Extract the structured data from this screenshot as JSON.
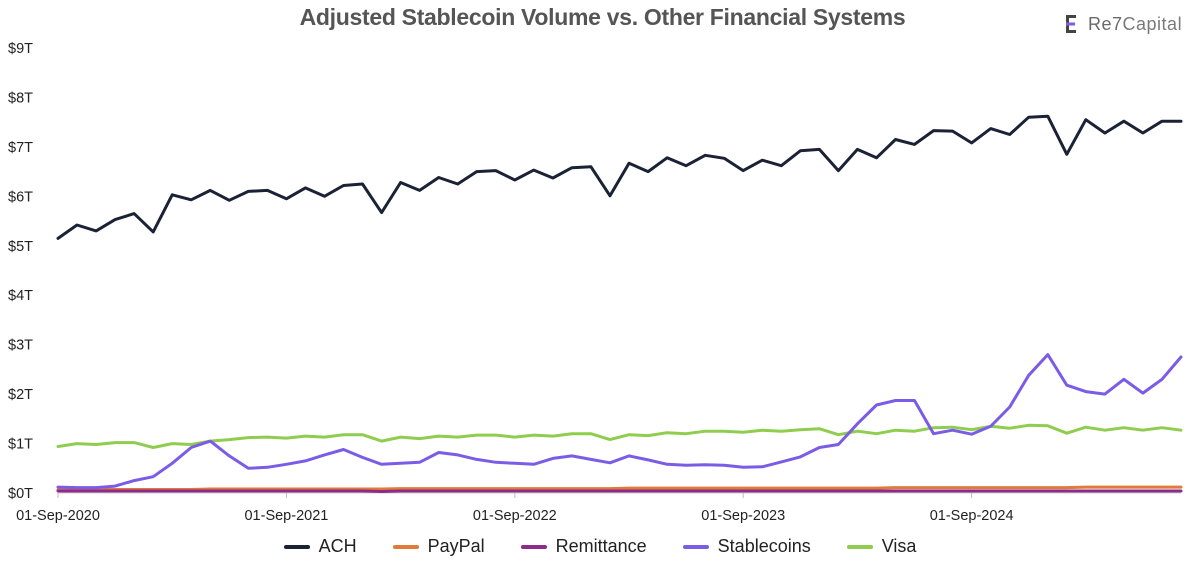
{
  "chart_data": {
    "type": "line",
    "title": "Adjusted Stablecoin Volume vs. Other Financial Systems",
    "brand": "Re7Capital",
    "brand_parts": [
      "Re7",
      "Capital"
    ],
    "xlabel": "",
    "ylabel": "",
    "ylim": [
      0,
      9
    ],
    "y_unit": "trillion USD",
    "y_ticks": [
      "$0T",
      "$1T",
      "$2T",
      "$3T",
      "$4T",
      "$5T",
      "$6T",
      "$7T",
      "$8T",
      "$9T"
    ],
    "x_ticks": [
      "01-Sep-2020",
      "01-Sep-2021",
      "01-Sep-2022",
      "01-Sep-2023",
      "01-Sep-2024"
    ],
    "x_start": "2020-09",
    "x_end": "2025-09",
    "x_frequency": "monthly",
    "grid": false,
    "legend_position": "bottom",
    "series": [
      {
        "name": "ACH",
        "color": "#1b2236",
        "values": [
          5.15,
          5.42,
          5.3,
          5.53,
          5.65,
          5.28,
          6.03,
          5.93,
          6.12,
          5.92,
          6.1,
          6.12,
          5.95,
          6.17,
          6.0,
          6.22,
          6.25,
          5.67,
          6.28,
          6.12,
          6.38,
          6.25,
          6.5,
          6.52,
          6.33,
          6.53,
          6.37,
          6.58,
          6.6,
          6.01,
          6.67,
          6.5,
          6.78,
          6.62,
          6.83,
          6.77,
          6.52,
          6.73,
          6.62,
          6.92,
          6.95,
          6.52,
          6.95,
          6.78,
          7.15,
          7.05,
          7.33,
          7.32,
          7.08,
          7.37,
          7.25,
          7.6,
          7.62,
          6.85,
          7.55,
          7.28,
          7.52,
          7.28,
          7.52,
          7.52
        ]
      },
      {
        "name": "PayPal",
        "color": "#e07b39",
        "values": [
          0.06,
          0.07,
          0.07,
          0.07,
          0.07,
          0.07,
          0.07,
          0.07,
          0.08,
          0.08,
          0.08,
          0.08,
          0.08,
          0.08,
          0.08,
          0.08,
          0.08,
          0.08,
          0.09,
          0.09,
          0.09,
          0.09,
          0.09,
          0.09,
          0.09,
          0.09,
          0.09,
          0.09,
          0.09,
          0.09,
          0.1,
          0.1,
          0.1,
          0.1,
          0.1,
          0.1,
          0.1,
          0.1,
          0.1,
          0.1,
          0.1,
          0.1,
          0.1,
          0.1,
          0.11,
          0.11,
          0.11,
          0.11,
          0.11,
          0.11,
          0.11,
          0.11,
          0.11,
          0.11,
          0.12,
          0.12,
          0.12,
          0.12,
          0.12,
          0.12
        ]
      },
      {
        "name": "Remittance",
        "color": "#8e2a8a",
        "values": [
          0.04,
          0.04,
          0.04,
          0.04,
          0.04,
          0.04,
          0.04,
          0.04,
          0.04,
          0.04,
          0.04,
          0.04,
          0.04,
          0.04,
          0.04,
          0.04,
          0.04,
          0.03,
          0.04,
          0.04,
          0.04,
          0.04,
          0.04,
          0.04,
          0.04,
          0.04,
          0.04,
          0.04,
          0.04,
          0.04,
          0.04,
          0.04,
          0.04,
          0.04,
          0.04,
          0.04,
          0.04,
          0.04,
          0.04,
          0.04,
          0.04,
          0.04,
          0.04,
          0.04,
          0.04,
          0.04,
          0.04,
          0.04,
          0.04,
          0.04,
          0.04,
          0.04,
          0.04,
          0.04,
          0.04,
          0.04,
          0.04,
          0.04,
          0.04,
          0.04
        ]
      },
      {
        "name": "Stablecoins",
        "color": "#7b5ce6",
        "values": [
          0.12,
          0.11,
          0.11,
          0.14,
          0.25,
          0.33,
          0.6,
          0.92,
          1.05,
          0.75,
          0.5,
          0.52,
          0.58,
          0.65,
          0.77,
          0.88,
          0.72,
          0.58,
          0.6,
          0.62,
          0.82,
          0.77,
          0.68,
          0.62,
          0.6,
          0.58,
          0.7,
          0.75,
          0.68,
          0.61,
          0.75,
          0.67,
          0.58,
          0.56,
          0.57,
          0.56,
          0.52,
          0.53,
          0.63,
          0.73,
          0.92,
          0.98,
          1.4,
          1.78,
          1.87,
          1.87,
          1.2,
          1.27,
          1.19,
          1.35,
          1.74,
          2.38,
          2.8,
          2.18,
          2.05,
          2.0,
          2.3,
          2.02,
          2.3,
          2.75
        ]
      },
      {
        "name": "Visa",
        "color": "#8fcd4f",
        "values": [
          0.94,
          1.0,
          0.98,
          1.02,
          1.02,
          0.92,
          1.0,
          0.98,
          1.05,
          1.08,
          1.12,
          1.13,
          1.11,
          1.15,
          1.13,
          1.18,
          1.18,
          1.05,
          1.13,
          1.1,
          1.15,
          1.13,
          1.17,
          1.17,
          1.13,
          1.17,
          1.15,
          1.2,
          1.2,
          1.08,
          1.18,
          1.16,
          1.22,
          1.2,
          1.25,
          1.25,
          1.23,
          1.27,
          1.25,
          1.28,
          1.3,
          1.18,
          1.25,
          1.2,
          1.27,
          1.25,
          1.32,
          1.33,
          1.28,
          1.35,
          1.31,
          1.37,
          1.36,
          1.21,
          1.33,
          1.27,
          1.32,
          1.27,
          1.32,
          1.27
        ]
      }
    ]
  }
}
